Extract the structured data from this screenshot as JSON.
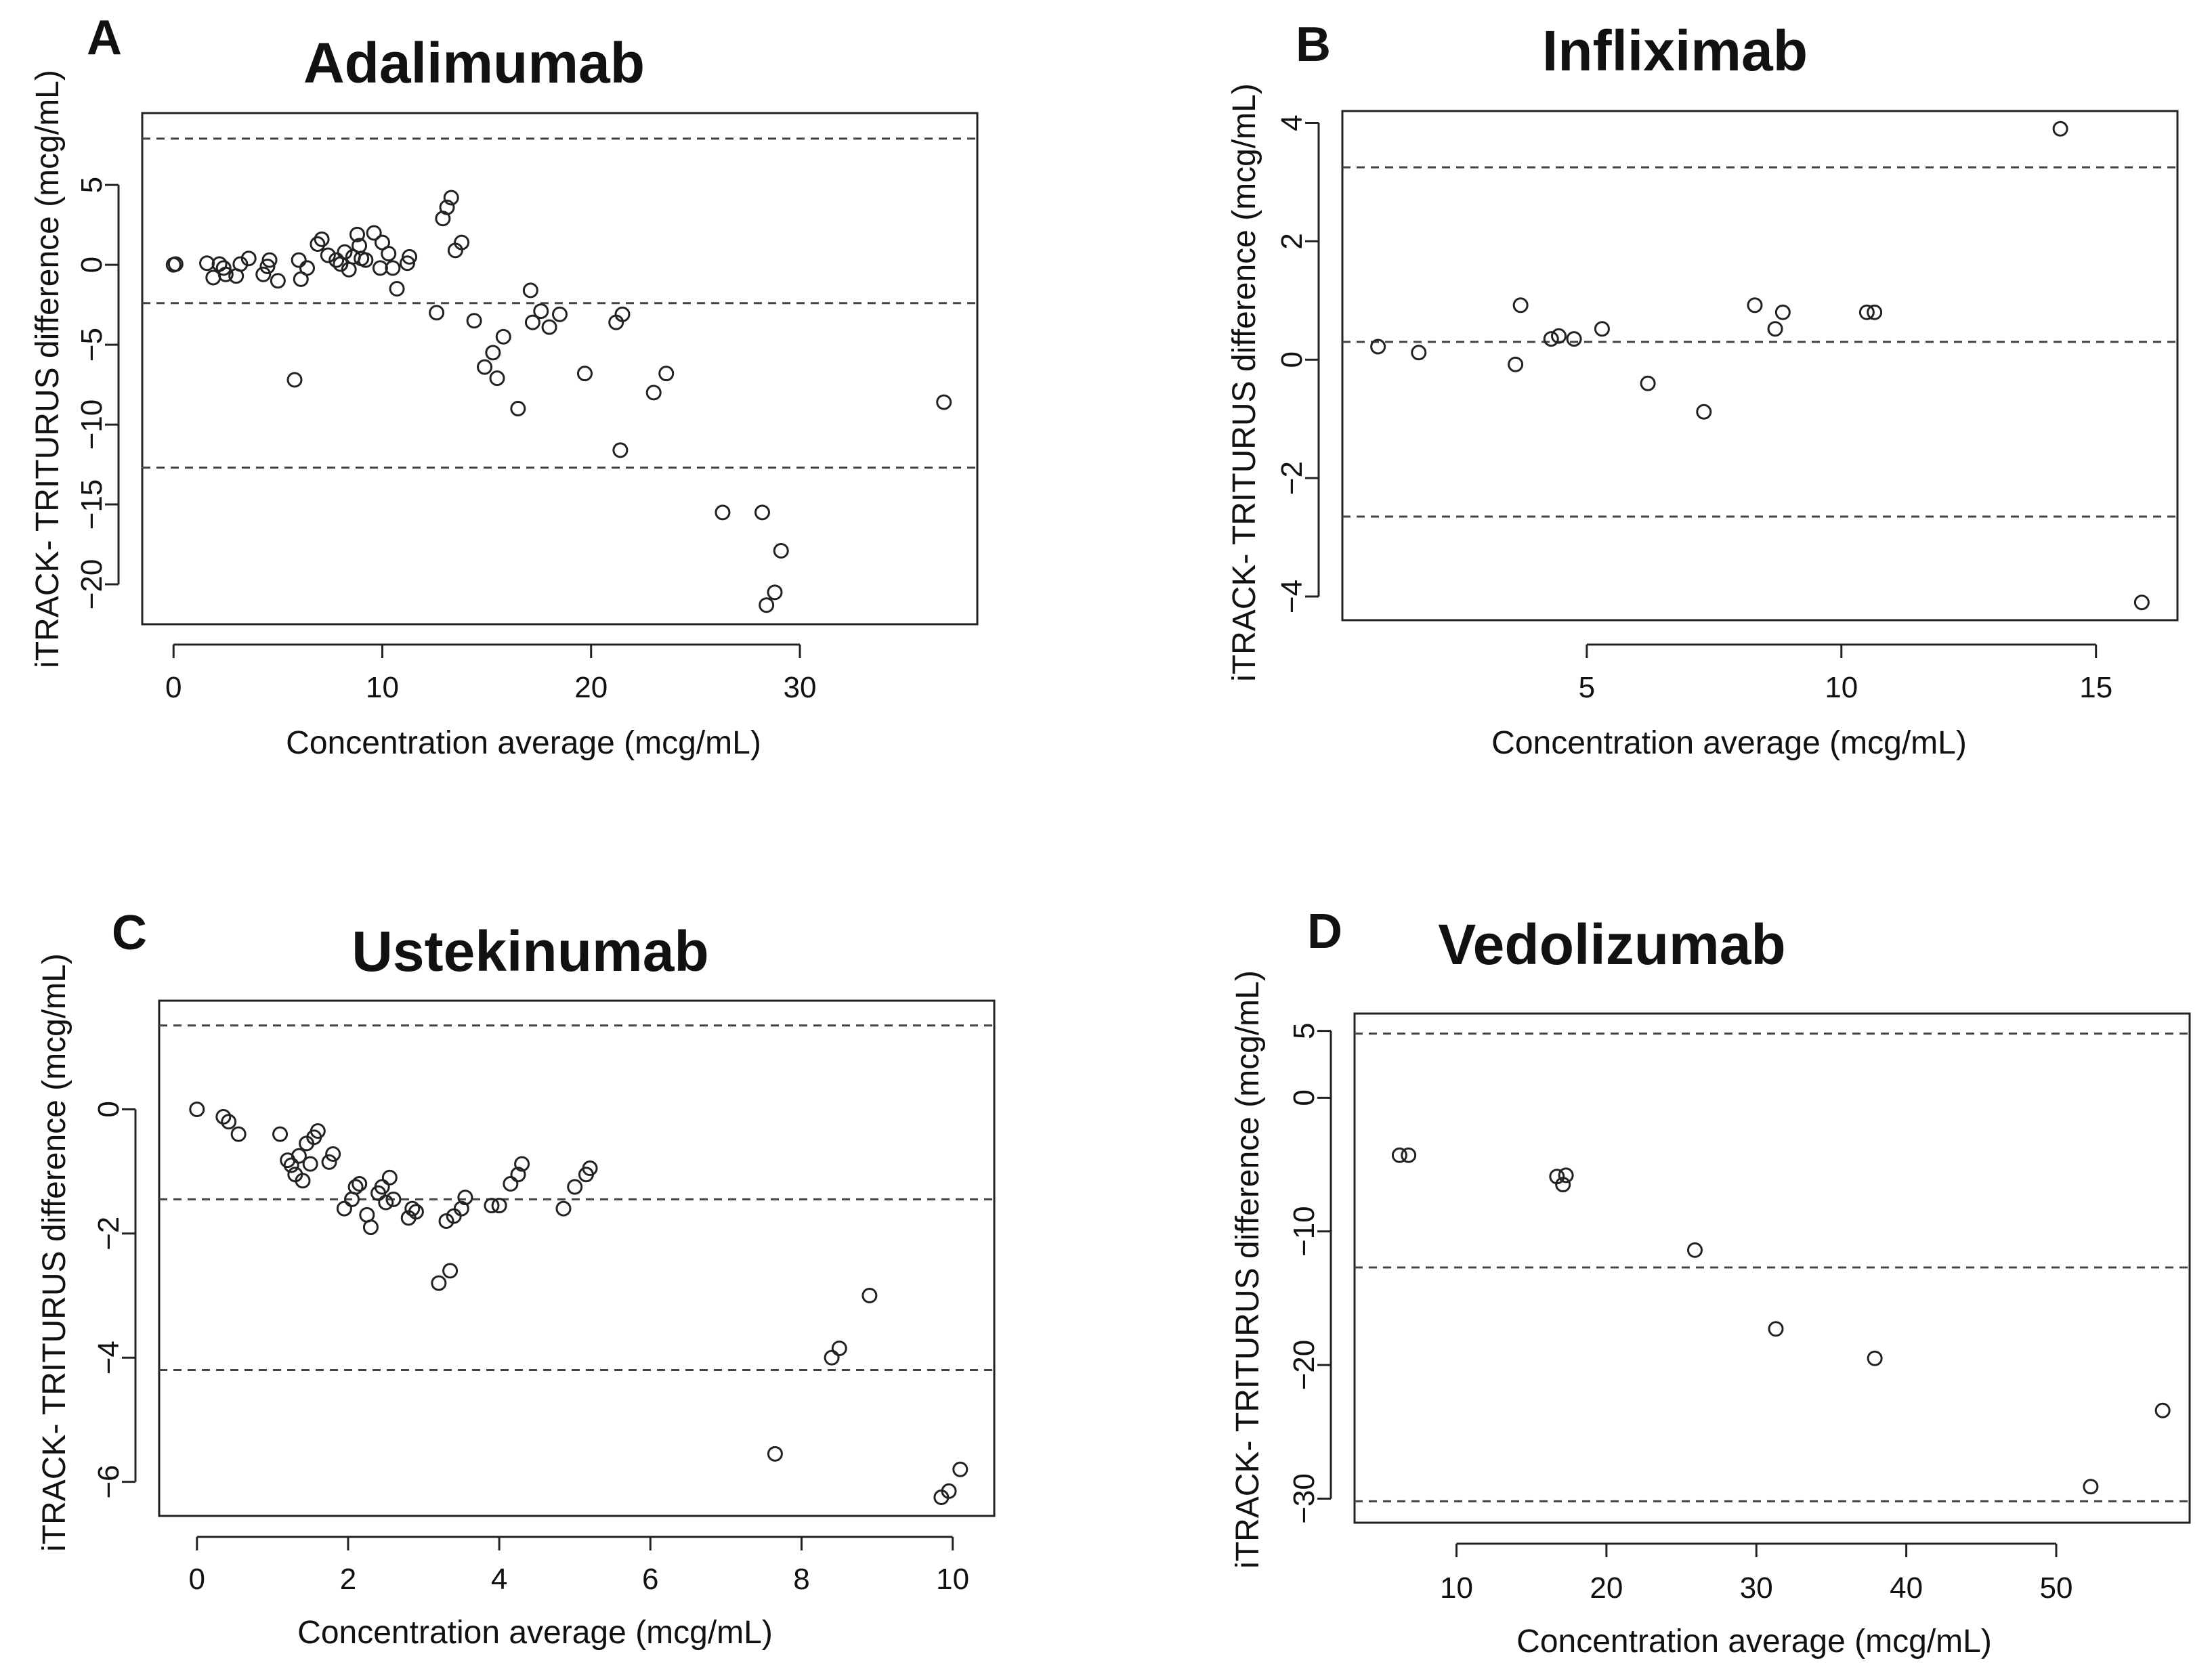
{
  "chart_data": [
    {
      "panel_letter": "A",
      "type": "scatter",
      "title": "Adalimumab",
      "xlabel": "Concentration average (mcg/mL)",
      "ylabel": "iTRACK- TRITURUS difference (mcg/mL)",
      "xlim": [
        -1.5,
        38.5
      ],
      "ylim": [
        -22.5,
        9.5
      ],
      "xticks": [
        0,
        10,
        20,
        30
      ],
      "yticks": [
        5,
        0,
        -5,
        -10,
        -15,
        -20
      ],
      "hlines": [
        7.9,
        -2.4,
        -12.7
      ],
      "points": [
        [
          0,
          0
        ],
        [
          0.1,
          0.05
        ],
        [
          1.6,
          0.1
        ],
        [
          1.9,
          -0.8
        ],
        [
          2.2,
          0.05
        ],
        [
          2.4,
          -0.2
        ],
        [
          2.5,
          -0.6
        ],
        [
          3.0,
          -0.7
        ],
        [
          3.2,
          0.05
        ],
        [
          3.6,
          0.4
        ],
        [
          4.3,
          -0.6
        ],
        [
          4.5,
          -0.1
        ],
        [
          4.6,
          0.3
        ],
        [
          5.0,
          -1.0
        ],
        [
          5.8,
          -7.2
        ],
        [
          6.0,
          0.3
        ],
        [
          6.1,
          -0.9
        ],
        [
          6.4,
          -0.2
        ],
        [
          6.9,
          1.3
        ],
        [
          7.1,
          1.6
        ],
        [
          7.4,
          0.6
        ],
        [
          7.8,
          0.3
        ],
        [
          8.0,
          0.05
        ],
        [
          8.2,
          0.8
        ],
        [
          8.4,
          -0.3
        ],
        [
          8.6,
          0.5
        ],
        [
          8.8,
          1.9
        ],
        [
          8.9,
          1.2
        ],
        [
          9.0,
          0.4
        ],
        [
          9.2,
          0.3
        ],
        [
          9.6,
          2.0
        ],
        [
          9.9,
          -0.2
        ],
        [
          10.0,
          1.4
        ],
        [
          10.3,
          0.7
        ],
        [
          10.5,
          -0.2
        ],
        [
          10.7,
          -1.5
        ],
        [
          11.2,
          0.1
        ],
        [
          11.3,
          0.5
        ],
        [
          12.6,
          -3.0
        ],
        [
          12.9,
          2.9
        ],
        [
          13.1,
          3.6
        ],
        [
          13.3,
          4.2
        ],
        [
          13.5,
          0.9
        ],
        [
          13.8,
          1.4
        ],
        [
          14.4,
          -3.5
        ],
        [
          14.9,
          -6.4
        ],
        [
          15.3,
          -5.5
        ],
        [
          15.5,
          -7.1
        ],
        [
          15.8,
          -4.5
        ],
        [
          16.5,
          -9.0
        ],
        [
          17.1,
          -1.6
        ],
        [
          17.2,
          -3.6
        ],
        [
          17.6,
          -2.9
        ],
        [
          18.0,
          -3.9
        ],
        [
          18.5,
          -3.1
        ],
        [
          19.7,
          -6.8
        ],
        [
          21.2,
          -3.6
        ],
        [
          21.4,
          -11.6
        ],
        [
          21.5,
          -3.1
        ],
        [
          23.0,
          -8.0
        ],
        [
          23.6,
          -6.8
        ],
        [
          26.3,
          -15.5
        ],
        [
          28.2,
          -15.5
        ],
        [
          28.4,
          -21.3
        ],
        [
          28.8,
          -20.5
        ],
        [
          29.1,
          -17.9
        ],
        [
          36.9,
          -8.6
        ]
      ]
    },
    {
      "panel_letter": "B",
      "type": "scatter",
      "title": "Infliximab",
      "xlabel": "Concentration average (mcg/mL)",
      "ylabel": "iTRACK- TRITURUS difference (mcg/mL)",
      "xlim": [
        0.2,
        16.6
      ],
      "ylim": [
        -4.4,
        4.2
      ],
      "xticks": [
        5,
        10,
        15
      ],
      "yticks": [
        4,
        2,
        0,
        -2,
        -4
      ],
      "hlines": [
        3.25,
        0.3,
        -2.65
      ],
      "points": [
        [
          0.9,
          0.22
        ],
        [
          1.7,
          0.12
        ],
        [
          3.6,
          -0.08
        ],
        [
          3.7,
          0.92
        ],
        [
          4.3,
          0.35
        ],
        [
          4.45,
          0.4
        ],
        [
          4.75,
          0.35
        ],
        [
          5.3,
          0.52
        ],
        [
          6.2,
          -0.4
        ],
        [
          7.3,
          -0.88
        ],
        [
          8.3,
          0.92
        ],
        [
          8.7,
          0.52
        ],
        [
          8.85,
          0.8
        ],
        [
          10.5,
          0.8
        ],
        [
          10.65,
          0.8
        ],
        [
          14.3,
          3.9
        ],
        [
          15.9,
          -4.1
        ]
      ]
    },
    {
      "panel_letter": "C",
      "type": "scatter",
      "title": "Ustekinumab",
      "xlabel": "Concentration average (mcg/mL)",
      "ylabel": "iTRACK- TRITURUS difference (mcg/mL)",
      "xlim": [
        -0.5,
        10.55
      ],
      "ylim": [
        -6.55,
        1.75
      ],
      "xticks": [
        0,
        2,
        4,
        6,
        8,
        10
      ],
      "yticks": [
        0,
        -2,
        -4,
        -6
      ],
      "hlines": [
        1.35,
        -1.45,
        -4.2
      ],
      "points": [
        [
          0,
          0
        ],
        [
          0.35,
          -0.12
        ],
        [
          0.42,
          -0.2
        ],
        [
          0.55,
          -0.4
        ],
        [
          1.1,
          -0.4
        ],
        [
          1.2,
          -0.82
        ],
        [
          1.25,
          -0.9
        ],
        [
          1.3,
          -1.05
        ],
        [
          1.35,
          -0.75
        ],
        [
          1.4,
          -1.15
        ],
        [
          1.45,
          -0.55
        ],
        [
          1.5,
          -0.88
        ],
        [
          1.55,
          -0.45
        ],
        [
          1.6,
          -0.35
        ],
        [
          1.75,
          -0.85
        ],
        [
          1.8,
          -0.72
        ],
        [
          1.95,
          -1.6
        ],
        [
          2.05,
          -1.45
        ],
        [
          2.1,
          -1.25
        ],
        [
          2.15,
          -1.2
        ],
        [
          2.25,
          -1.7
        ],
        [
          2.3,
          -1.9
        ],
        [
          2.4,
          -1.35
        ],
        [
          2.45,
          -1.25
        ],
        [
          2.5,
          -1.5
        ],
        [
          2.55,
          -1.1
        ],
        [
          2.6,
          -1.45
        ],
        [
          2.8,
          -1.75
        ],
        [
          2.85,
          -1.6
        ],
        [
          2.9,
          -1.65
        ],
        [
          3.2,
          -2.8
        ],
        [
          3.3,
          -1.8
        ],
        [
          3.35,
          -2.6
        ],
        [
          3.4,
          -1.72
        ],
        [
          3.5,
          -1.6
        ],
        [
          3.55,
          -1.42
        ],
        [
          3.9,
          -1.55
        ],
        [
          4.0,
          -1.55
        ],
        [
          4.15,
          -1.2
        ],
        [
          4.25,
          -1.05
        ],
        [
          4.3,
          -0.88
        ],
        [
          4.85,
          -1.6
        ],
        [
          5.0,
          -1.25
        ],
        [
          5.15,
          -1.05
        ],
        [
          5.2,
          -0.95
        ],
        [
          7.65,
          -5.55
        ],
        [
          8.4,
          -4.0
        ],
        [
          8.5,
          -3.85
        ],
        [
          8.9,
          -3.0
        ],
        [
          9.85,
          -6.25
        ],
        [
          9.95,
          -6.15
        ],
        [
          10.1,
          -5.8
        ]
      ]
    },
    {
      "panel_letter": "D",
      "type": "scatter",
      "title": "Vedolizumab",
      "xlabel": "Concentration average (mcg/mL)",
      "ylabel": "iTRACK- TRITURUS difference (mcg/mL)",
      "xlim": [
        3.2,
        58.9
      ],
      "ylim": [
        -31.8,
        6.3
      ],
      "xticks": [
        10,
        20,
        30,
        40,
        50
      ],
      "yticks": [
        5,
        0,
        -10,
        -20,
        -30
      ],
      "hlines": [
        4.8,
        -12.7,
        -30.2
      ],
      "points": [
        [
          6.2,
          -4.3
        ],
        [
          6.8,
          -4.3
        ],
        [
          16.7,
          -5.9
        ],
        [
          17.1,
          -6.5
        ],
        [
          17.3,
          -5.8
        ],
        [
          25.9,
          -11.4
        ],
        [
          31.3,
          -17.3
        ],
        [
          37.9,
          -19.5
        ],
        [
          52.3,
          -29.1
        ],
        [
          57.1,
          -23.4
        ]
      ]
    }
  ]
}
